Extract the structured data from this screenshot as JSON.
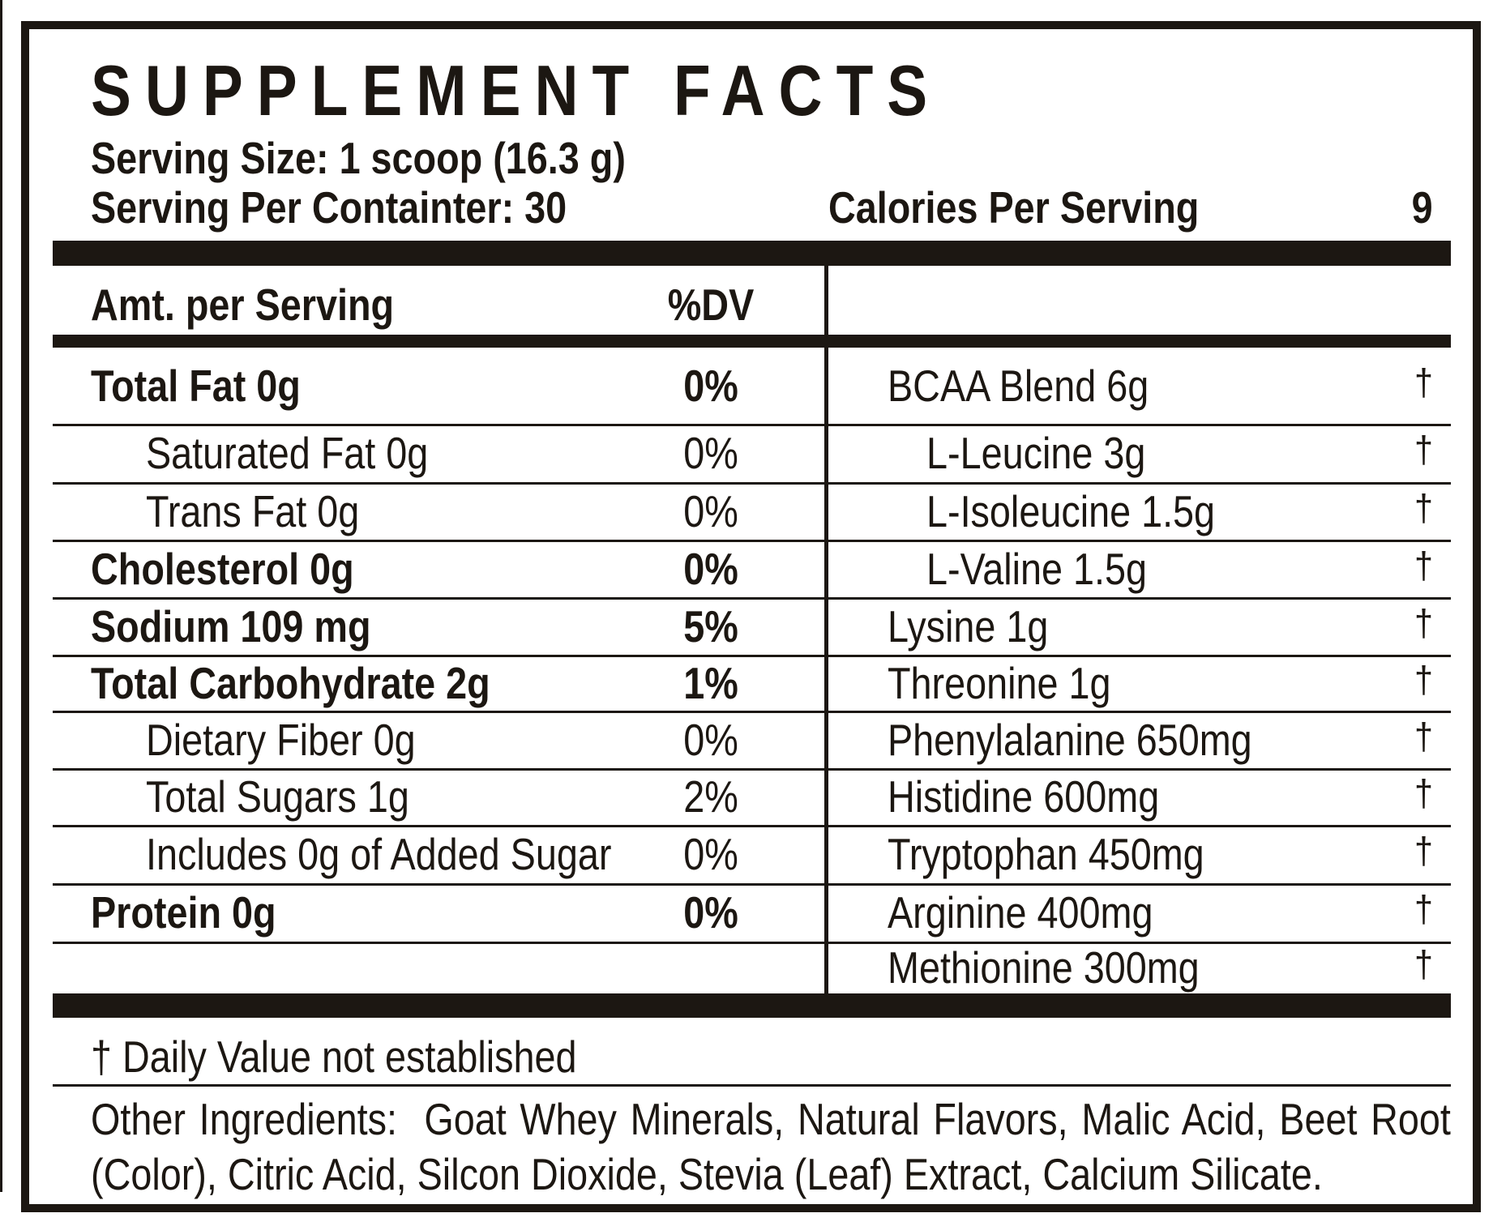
{
  "label": {
    "title": "SUPPLEMENT FACTS",
    "serving_size": "Serving Size: 1 scoop (16.3 g)",
    "servings_per_container": "Serving Per Containter: 30",
    "calories_label": "Calories Per Serving",
    "calories_value": "9"
  },
  "table": {
    "amt_header": "Amt. per Serving",
    "dv_header": "%DV",
    "dagger": "†",
    "rows": [
      {
        "left": {
          "label": "Total Fat 0g",
          "dv": "0%",
          "bold": true,
          "indent": false
        },
        "right": {
          "label": "BCAA Blend 6g",
          "indent": false,
          "dagger": true
        }
      },
      {
        "left": {
          "label": "Saturated Fat 0g",
          "dv": "0%",
          "bold": false,
          "indent": true
        },
        "right": {
          "label": "L-Leucine 3g",
          "indent": true,
          "dagger": true
        }
      },
      {
        "left": {
          "label": "Trans Fat 0g",
          "dv": "0%",
          "bold": false,
          "indent": true
        },
        "right": {
          "label": "L-Isoleucine 1.5g",
          "indent": true,
          "dagger": true
        }
      },
      {
        "left": {
          "label": "Cholesterol 0g",
          "dv": "0%",
          "bold": true,
          "indent": false
        },
        "right": {
          "label": "L-Valine 1.5g",
          "indent": true,
          "dagger": true
        }
      },
      {
        "left": {
          "label": "Sodium 109 mg",
          "dv": "5%",
          "bold": true,
          "indent": false
        },
        "right": {
          "label": "Lysine 1g",
          "indent": false,
          "dagger": true
        }
      },
      {
        "left": {
          "label": "Total Carbohydrate 2g",
          "dv": "1%",
          "bold": true,
          "indent": false
        },
        "right": {
          "label": "Threonine 1g",
          "indent": false,
          "dagger": true
        }
      },
      {
        "left": {
          "label": "Dietary Fiber 0g",
          "dv": "0%",
          "bold": false,
          "indent": true
        },
        "right": {
          "label": "Phenylalanine 650mg",
          "indent": false,
          "dagger": true
        }
      },
      {
        "left": {
          "label": "Total Sugars 1g",
          "dv": "2%",
          "bold": false,
          "indent": true
        },
        "right": {
          "label": "Histidine 600mg",
          "indent": false,
          "dagger": true
        }
      },
      {
        "left": {
          "label": "Includes 0g of Added Sugar",
          "dv": "0%",
          "bold": false,
          "indent": true
        },
        "right": {
          "label": "Tryptophan 450mg",
          "indent": false,
          "dagger": true
        }
      },
      {
        "left": {
          "label": "Protein 0g",
          "dv": "0%",
          "bold": true,
          "indent": false
        },
        "right": {
          "label": "Arginine 400mg",
          "indent": false,
          "dagger": true
        }
      },
      {
        "left": {
          "label": "",
          "dv": "",
          "bold": false,
          "indent": false
        },
        "right": {
          "label": "Methionine 300mg",
          "indent": false,
          "dagger": true
        }
      }
    ]
  },
  "footnote": "† Daily Value not established",
  "other_ingredients": "Other Ingredients:  Goat Whey Minerals, Natural Flavors, Malic Acid, Beet Root (Color), Citric Acid, Silcon Dioxide, Stevia (Leaf) Extract, Calcium Silicate.",
  "colors": {
    "ink": "#1c1712",
    "background": "#ffffff"
  }
}
